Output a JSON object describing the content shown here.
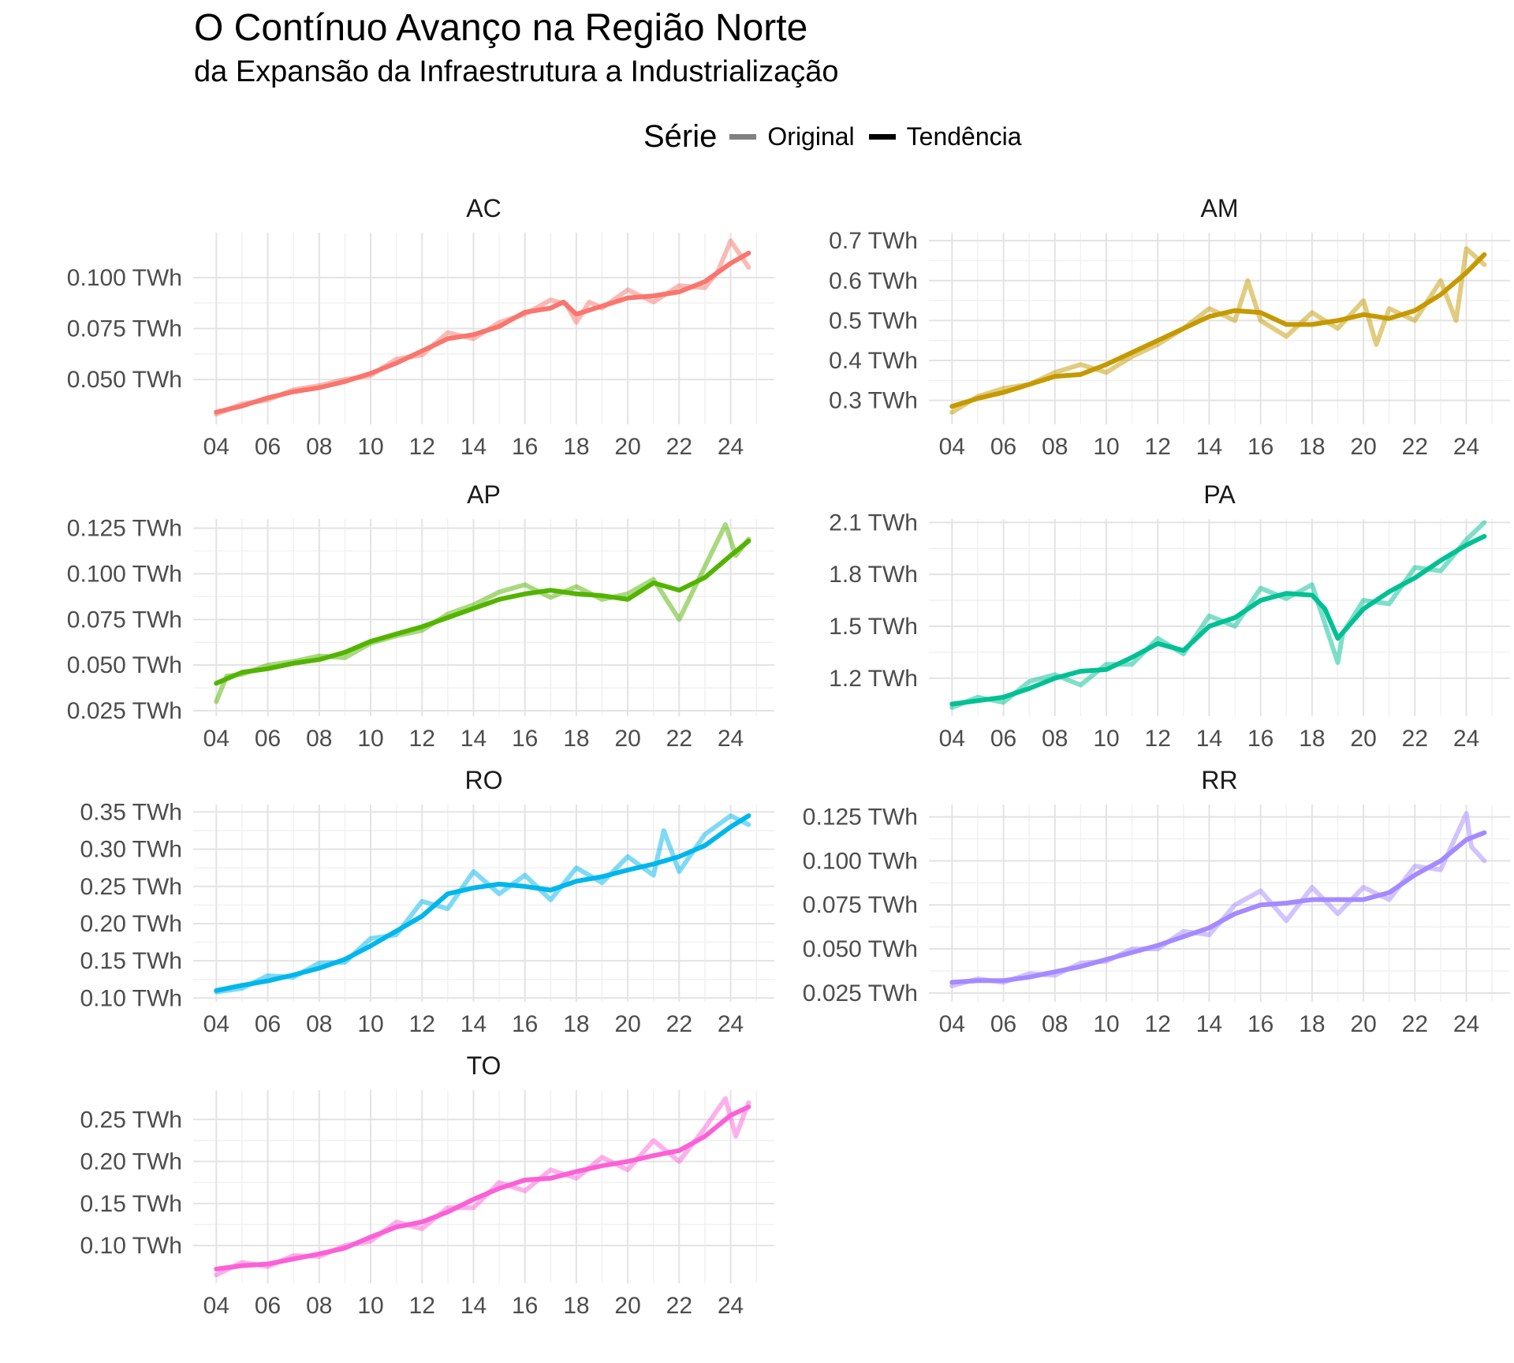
{
  "title": "O Contínuo Avanço na Região Norte",
  "subtitle": "da Expansão da Infraestrutura a Industrialização",
  "legend": {
    "title": "Série",
    "items": [
      {
        "label": "Original",
        "color": "#808080"
      },
      {
        "label": "Tendência",
        "color": "#000000"
      }
    ]
  },
  "chart_data": {
    "type": "line",
    "facet": "grid-2-columns",
    "grid": true,
    "legend_position": "top",
    "x_ticks": [
      {
        "value": 2004,
        "label": "04"
      },
      {
        "value": 2006,
        "label": "06"
      },
      {
        "value": 2008,
        "label": "08"
      },
      {
        "value": 2010,
        "label": "10"
      },
      {
        "value": 2012,
        "label": "12"
      },
      {
        "value": 2014,
        "label": "14"
      },
      {
        "value": 2016,
        "label": "16"
      },
      {
        "value": 2018,
        "label": "18"
      },
      {
        "value": 2020,
        "label": "20"
      },
      {
        "value": 2022,
        "label": "22"
      },
      {
        "value": 2024,
        "label": "24"
      }
    ],
    "xlim": [
      2003.1,
      2025.7
    ],
    "panels": [
      {
        "name": "AC",
        "color": "#F8766D",
        "ylim": [
          0.028,
          0.122
        ],
        "y_ticks": [
          {
            "value": 0.05,
            "label": "0.050 TWh"
          },
          {
            "value": 0.075,
            "label": "0.075 TWh"
          },
          {
            "value": 0.1,
            "label": "0.100 TWh"
          }
        ],
        "trend": {
          "x": [
            2004,
            2005,
            2006,
            2007,
            2008,
            2009,
            2010,
            2011,
            2012,
            2013,
            2014,
            2015,
            2016,
            2017,
            2017.5,
            2018,
            2019,
            2020,
            2021,
            2022,
            2023,
            2024,
            2024.7
          ],
          "y": [
            0.034,
            0.037,
            0.041,
            0.044,
            0.046,
            0.049,
            0.053,
            0.058,
            0.064,
            0.07,
            0.072,
            0.076,
            0.083,
            0.085,
            0.088,
            0.082,
            0.086,
            0.09,
            0.091,
            0.093,
            0.098,
            0.107,
            0.112
          ]
        },
        "original": {
          "x": [
            2004,
            2005,
            2006,
            2007,
            2008,
            2009,
            2010,
            2011,
            2012,
            2013,
            2014,
            2015,
            2016,
            2017,
            2017.6,
            2018,
            2018.5,
            2019,
            2020,
            2021,
            2022,
            2023,
            2023.5,
            2024,
            2024.7
          ],
          "y": [
            0.033,
            0.038,
            0.04,
            0.045,
            0.047,
            0.05,
            0.052,
            0.06,
            0.062,
            0.073,
            0.07,
            0.078,
            0.082,
            0.089,
            0.087,
            0.078,
            0.088,
            0.085,
            0.094,
            0.088,
            0.096,
            0.095,
            0.103,
            0.118,
            0.105
          ]
        }
      },
      {
        "name": "AM",
        "color": "#C49A00",
        "ylim": [
          0.24,
          0.72
        ],
        "y_ticks": [
          {
            "value": 0.3,
            "label": "0.3 TWh"
          },
          {
            "value": 0.4,
            "label": "0.4 TWh"
          },
          {
            "value": 0.5,
            "label": "0.5 TWh"
          },
          {
            "value": 0.6,
            "label": "0.6 TWh"
          },
          {
            "value": 0.7,
            "label": "0.7 TWh"
          }
        ],
        "trend": {
          "x": [
            2004,
            2005,
            2006,
            2007,
            2008,
            2009,
            2010,
            2011,
            2012,
            2013,
            2014,
            2015,
            2016,
            2017,
            2018,
            2019,
            2020,
            2021,
            2022,
            2023,
            2024,
            2024.7
          ],
          "y": [
            0.285,
            0.305,
            0.32,
            0.34,
            0.36,
            0.365,
            0.39,
            0.42,
            0.45,
            0.48,
            0.51,
            0.525,
            0.52,
            0.49,
            0.49,
            0.5,
            0.515,
            0.505,
            0.525,
            0.565,
            0.62,
            0.665
          ]
        },
        "original": {
          "x": [
            2004,
            2005,
            2006,
            2007,
            2008,
            2009,
            2010,
            2011,
            2012,
            2013,
            2014,
            2015,
            2015.5,
            2016,
            2017,
            2018,
            2019,
            2020,
            2020.5,
            2021,
            2022,
            2023,
            2023.6,
            2024,
            2024.7
          ],
          "y": [
            0.27,
            0.31,
            0.33,
            0.34,
            0.37,
            0.39,
            0.37,
            0.41,
            0.44,
            0.48,
            0.53,
            0.5,
            0.6,
            0.5,
            0.46,
            0.52,
            0.48,
            0.55,
            0.44,
            0.53,
            0.5,
            0.6,
            0.5,
            0.68,
            0.64
          ]
        }
      },
      {
        "name": "AP",
        "color": "#53B400",
        "ylim": [
          0.022,
          0.13
        ],
        "y_ticks": [
          {
            "value": 0.025,
            "label": "0.025 TWh"
          },
          {
            "value": 0.05,
            "label": "0.050 TWh"
          },
          {
            "value": 0.075,
            "label": "0.075 TWh"
          },
          {
            "value": 0.1,
            "label": "0.100 TWh"
          },
          {
            "value": 0.125,
            "label": "0.125 TWh"
          }
        ],
        "trend": {
          "x": [
            2004,
            2005,
            2006,
            2007,
            2008,
            2009,
            2010,
            2011,
            2012,
            2013,
            2014,
            2015,
            2016,
            2017,
            2018,
            2019,
            2020,
            2021,
            2022,
            2023,
            2024,
            2024.7
          ],
          "y": [
            0.04,
            0.046,
            0.048,
            0.051,
            0.053,
            0.057,
            0.063,
            0.067,
            0.071,
            0.076,
            0.081,
            0.086,
            0.089,
            0.091,
            0.089,
            0.088,
            0.086,
            0.095,
            0.091,
            0.098,
            0.11,
            0.118
          ]
        },
        "original": {
          "x": [
            2004,
            2004.4,
            2005,
            2006,
            2007,
            2008,
            2009,
            2010,
            2011,
            2012,
            2013,
            2014,
            2015,
            2016,
            2017,
            2018,
            2019,
            2020,
            2021,
            2022,
            2023,
            2023.8,
            2024.2,
            2024.7
          ],
          "y": [
            0.03,
            0.044,
            0.045,
            0.05,
            0.052,
            0.055,
            0.054,
            0.062,
            0.066,
            0.069,
            0.078,
            0.083,
            0.09,
            0.094,
            0.087,
            0.093,
            0.086,
            0.089,
            0.097,
            0.075,
            0.104,
            0.127,
            0.11,
            0.119
          ]
        }
      },
      {
        "name": "PA",
        "color": "#00C094",
        "ylim": [
          0.98,
          2.12
        ],
        "y_ticks": [
          {
            "value": 1.2,
            "label": "1.2 TWh"
          },
          {
            "value": 1.5,
            "label": "1.5 TWh"
          },
          {
            "value": 1.8,
            "label": "1.8 TWh"
          },
          {
            "value": 2.1,
            "label": "2.1 TWh"
          }
        ],
        "trend": {
          "x": [
            2004,
            2005,
            2006,
            2007,
            2008,
            2009,
            2010,
            2011,
            2012,
            2013,
            2014,
            2015,
            2016,
            2017,
            2018,
            2018.5,
            2019,
            2020,
            2021,
            2022,
            2023,
            2024,
            2024.7
          ],
          "y": [
            1.05,
            1.07,
            1.09,
            1.14,
            1.2,
            1.24,
            1.25,
            1.32,
            1.4,
            1.36,
            1.5,
            1.55,
            1.65,
            1.69,
            1.68,
            1.6,
            1.43,
            1.6,
            1.7,
            1.78,
            1.88,
            1.97,
            2.02
          ]
        },
        "original": {
          "x": [
            2004,
            2005,
            2006,
            2007,
            2008,
            2009,
            2010,
            2011,
            2012,
            2013,
            2014,
            2015,
            2016,
            2017,
            2018,
            2019,
            2019.2,
            2020,
            2021,
            2022,
            2023,
            2024,
            2024.7
          ],
          "y": [
            1.03,
            1.09,
            1.06,
            1.18,
            1.22,
            1.16,
            1.28,
            1.28,
            1.43,
            1.34,
            1.56,
            1.5,
            1.72,
            1.66,
            1.74,
            1.29,
            1.46,
            1.65,
            1.63,
            1.84,
            1.82,
            2.0,
            2.1
          ]
        }
      },
      {
        "name": "RO",
        "color": "#00B6EB",
        "ylim": [
          0.095,
          0.36
        ],
        "y_ticks": [
          {
            "value": 0.1,
            "label": "0.10 TWh"
          },
          {
            "value": 0.15,
            "label": "0.15 TWh"
          },
          {
            "value": 0.2,
            "label": "0.20 TWh"
          },
          {
            "value": 0.25,
            "label": "0.25 TWh"
          },
          {
            "value": 0.3,
            "label": "0.30 TWh"
          },
          {
            "value": 0.35,
            "label": "0.35 TWh"
          }
        ],
        "trend": {
          "x": [
            2004,
            2005,
            2006,
            2007,
            2008,
            2009,
            2010,
            2011,
            2012,
            2013,
            2014,
            2015,
            2016,
            2017,
            2018,
            2019,
            2020,
            2021,
            2022,
            2023,
            2024,
            2024.7
          ],
          "y": [
            0.11,
            0.117,
            0.123,
            0.131,
            0.14,
            0.152,
            0.17,
            0.19,
            0.21,
            0.24,
            0.248,
            0.253,
            0.25,
            0.245,
            0.257,
            0.263,
            0.272,
            0.28,
            0.29,
            0.305,
            0.33,
            0.345
          ]
        },
        "original": {
          "x": [
            2004,
            2005,
            2006,
            2007,
            2008,
            2009,
            2010,
            2011,
            2012,
            2013,
            2014,
            2015,
            2016,
            2017,
            2018,
            2019,
            2020,
            2021,
            2021.4,
            2022,
            2023,
            2024,
            2024.7
          ],
          "y": [
            0.108,
            0.113,
            0.13,
            0.128,
            0.147,
            0.148,
            0.18,
            0.185,
            0.23,
            0.22,
            0.27,
            0.24,
            0.265,
            0.232,
            0.275,
            0.255,
            0.29,
            0.265,
            0.325,
            0.27,
            0.32,
            0.345,
            0.333
          ]
        }
      },
      {
        "name": "RR",
        "color": "#A58AFF",
        "ylim": [
          0.02,
          0.132
        ],
        "y_ticks": [
          {
            "value": 0.025,
            "label": "0.025 TWh"
          },
          {
            "value": 0.05,
            "label": "0.050 TWh"
          },
          {
            "value": 0.075,
            "label": "0.075 TWh"
          },
          {
            "value": 0.1,
            "label": "0.100 TWh"
          },
          {
            "value": 0.125,
            "label": "0.125 TWh"
          }
        ],
        "trend": {
          "x": [
            2004,
            2005,
            2006,
            2007,
            2008,
            2009,
            2010,
            2011,
            2012,
            2013,
            2014,
            2015,
            2016,
            2017,
            2018,
            2019,
            2020,
            2021,
            2022,
            2023,
            2024,
            2024.7
          ],
          "y": [
            0.031,
            0.032,
            0.032,
            0.034,
            0.037,
            0.04,
            0.044,
            0.048,
            0.052,
            0.057,
            0.062,
            0.07,
            0.075,
            0.076,
            0.078,
            0.078,
            0.078,
            0.082,
            0.092,
            0.1,
            0.112,
            0.116
          ]
        },
        "original": {
          "x": [
            2004,
            2005,
            2006,
            2007,
            2008,
            2009,
            2010,
            2011,
            2012,
            2013,
            2014,
            2015,
            2016,
            2017,
            2018,
            2019,
            2020,
            2021,
            2022,
            2023,
            2024,
            2024.2,
            2024.7
          ],
          "y": [
            0.029,
            0.033,
            0.031,
            0.036,
            0.035,
            0.042,
            0.043,
            0.05,
            0.05,
            0.06,
            0.058,
            0.075,
            0.083,
            0.066,
            0.085,
            0.07,
            0.085,
            0.078,
            0.097,
            0.095,
            0.127,
            0.108,
            0.1
          ]
        }
      },
      {
        "name": "TO",
        "color": "#FB61D7",
        "ylim": [
          0.055,
          0.285
        ],
        "y_ticks": [
          {
            "value": 0.1,
            "label": "0.10 TWh"
          },
          {
            "value": 0.15,
            "label": "0.15 TWh"
          },
          {
            "value": 0.2,
            "label": "0.20 TWh"
          },
          {
            "value": 0.25,
            "label": "0.25 TWh"
          }
        ],
        "trend": {
          "x": [
            2004,
            2005,
            2006,
            2007,
            2008,
            2009,
            2010,
            2011,
            2012,
            2013,
            2014,
            2015,
            2016,
            2017,
            2018,
            2019,
            2020,
            2021,
            2022,
            2023,
            2024,
            2024.7
          ],
          "y": [
            0.072,
            0.076,
            0.078,
            0.084,
            0.09,
            0.097,
            0.11,
            0.122,
            0.128,
            0.14,
            0.155,
            0.168,
            0.178,
            0.18,
            0.188,
            0.195,
            0.2,
            0.207,
            0.213,
            0.23,
            0.255,
            0.265
          ]
        },
        "original": {
          "x": [
            2004,
            2005,
            2006,
            2007,
            2008,
            2009,
            2010,
            2011,
            2012,
            2013,
            2014,
            2015,
            2016,
            2017,
            2018,
            2019,
            2020,
            2021,
            2022,
            2023,
            2023.8,
            2024.2,
            2024.7
          ],
          "y": [
            0.065,
            0.08,
            0.075,
            0.088,
            0.087,
            0.1,
            0.105,
            0.128,
            0.12,
            0.145,
            0.145,
            0.175,
            0.165,
            0.19,
            0.18,
            0.205,
            0.19,
            0.225,
            0.2,
            0.24,
            0.275,
            0.23,
            0.27
          ]
        }
      }
    ]
  }
}
